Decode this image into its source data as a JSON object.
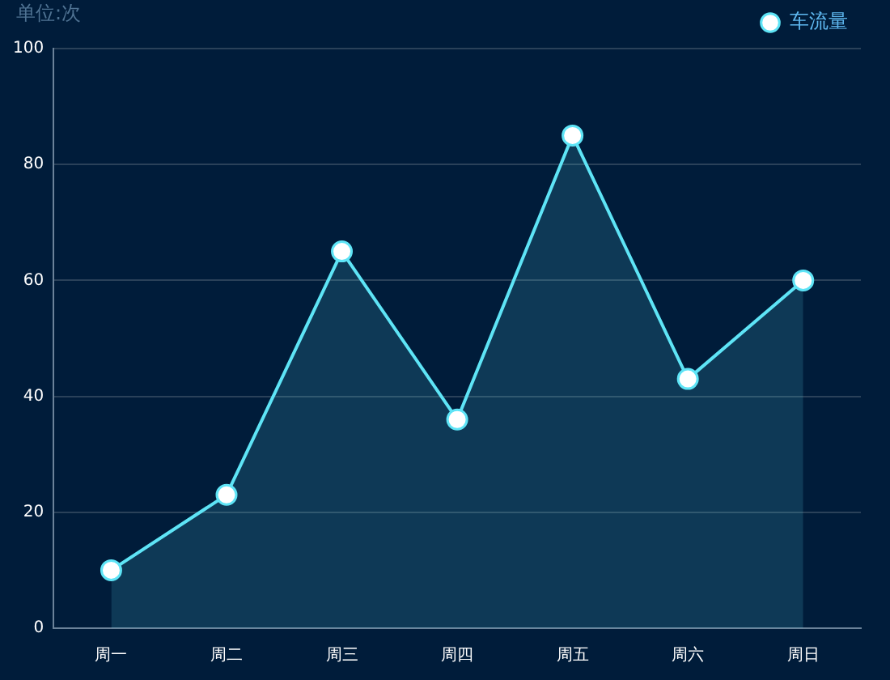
{
  "chart_data": {
    "type": "area",
    "ylabel": "单位:次",
    "categories": [
      "周一",
      "周二",
      "周三",
      "周四",
      "周五",
      "周六",
      "周日"
    ],
    "series": [
      {
        "name": "车流量",
        "color": "#5ee4f6",
        "values": [
          10,
          23,
          65,
          36,
          85,
          43,
          60
        ]
      }
    ],
    "ylim": [
      0,
      100
    ],
    "yticks": [
      0,
      20,
      40,
      60,
      80,
      100
    ],
    "grid": "y",
    "legend": "top right",
    "marker": "circle"
  }
}
